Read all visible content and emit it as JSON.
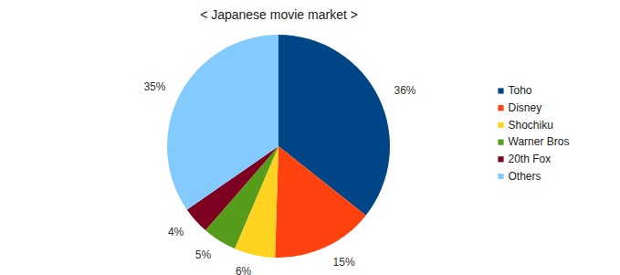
{
  "chart_data": {
    "type": "pie",
    "title": "< Japanese movie market >",
    "categories": [
      "Toho",
      "Disney",
      "Shochiku",
      "Warner Bros",
      "20th Fox",
      "Others"
    ],
    "values": [
      36,
      15,
      6,
      5,
      4,
      35
    ],
    "value_labels": [
      "36%",
      "15%",
      "6%",
      "5%",
      "4%",
      "35%"
    ],
    "colors": [
      "#004586",
      "#ff420e",
      "#ffd320",
      "#579d1c",
      "#7e0021",
      "#83caff"
    ],
    "data_labels": true,
    "legend": "right"
  }
}
